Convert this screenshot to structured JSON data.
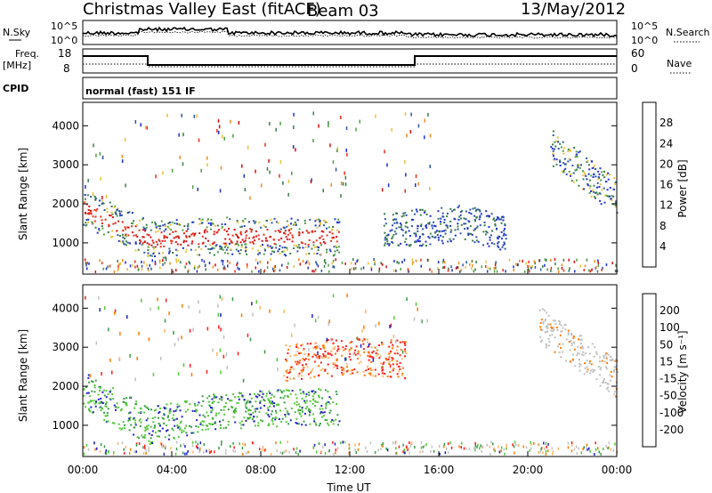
{
  "header": {
    "title": "Christmas Valley East (fitACF)",
    "beam": "Beam 03",
    "date": "13/May/2012"
  },
  "nsky_panel": {
    "left_label": "N.Sky",
    "right_label": "N.Search",
    "left_ticks": [
      "10^5",
      "10^0"
    ],
    "right_ticks": [
      "10^5",
      "10^0"
    ]
  },
  "freq_panel": {
    "left_label_1": "Freq.",
    "left_label_2": "[MHz]",
    "right_label": "Nave",
    "left_ticks": [
      "18",
      "8"
    ],
    "right_ticks": [
      "60",
      "0"
    ]
  },
  "cpid": {
    "label": "CPID",
    "text": "normal (fast) 151 IF"
  },
  "colors": {
    "power": [
      "#1f2fd6",
      "#2f55a8",
      "#3a7d4a",
      "#4f9f43",
      "#e6c23a",
      "#f08a1c",
      "#e9301c",
      "#d90f10"
    ],
    "velocity": [
      "#ff1a1a",
      "#ff7a00",
      "#ffb566",
      "#c0c0c0",
      "#c0c0c0",
      "#55c83a",
      "#3a9a4a",
      "#2020cc"
    ]
  },
  "chart_data": [
    {
      "type": "heatmap",
      "quantity": "power",
      "xlabel": "",
      "ylabel": "Slant Range [km]",
      "x_ticks": [
        "00:00",
        "04:00",
        "08:00",
        "12:00",
        "16:00",
        "20:00",
        "00:00"
      ],
      "y_ticks": [
        1000,
        2000,
        3000,
        4000
      ],
      "ylim": [
        200,
        4600
      ],
      "colorbar_label": "Power [dB]",
      "colorbar_ticks": [
        4,
        8,
        12,
        16,
        20,
        24,
        28
      ],
      "features": [
        {
          "hours": [
            0,
            3,
            6.5,
            11.5
          ],
          "range_km": [
            1900,
            1100,
            1200,
            1150
          ],
          "level": "high"
        },
        {
          "hours": [
            13.5,
            15,
            17,
            19
          ],
          "range_km": [
            1400,
            1400,
            1500,
            1300
          ],
          "level": "low"
        },
        {
          "hours": [
            21,
            23,
            24
          ],
          "range_km": [
            3500,
            2600,
            2200
          ],
          "level": "medium"
        }
      ]
    },
    {
      "type": "heatmap",
      "quantity": "velocity",
      "xlabel": "Time UT",
      "ylabel": "Slant Range [km]",
      "x_ticks": [
        "00:00",
        "04:00",
        "08:00",
        "12:00",
        "16:00",
        "20:00",
        "00:00"
      ],
      "y_ticks": [
        1000,
        2000,
        3000,
        4000
      ],
      "ylim": [
        200,
        4600
      ],
      "colorbar_label": "Velocity [m s⁻¹]",
      "colorbar_ticks": [
        200,
        100,
        50,
        15,
        -15,
        -50,
        -100,
        -200
      ],
      "features": [
        {
          "hours": [
            0,
            3,
            6,
            11.5
          ],
          "range_km": [
            1900,
            1000,
            1400,
            1500
          ],
          "level": "positive"
        },
        {
          "hours": [
            9,
            12,
            14.5
          ],
          "range_km": [
            2600,
            2800,
            2700
          ],
          "level": "negative"
        },
        {
          "hours": [
            20.5,
            22.5,
            24
          ],
          "range_km": [
            3600,
            2800,
            2200
          ],
          "level": "near-zero"
        }
      ]
    }
  ]
}
